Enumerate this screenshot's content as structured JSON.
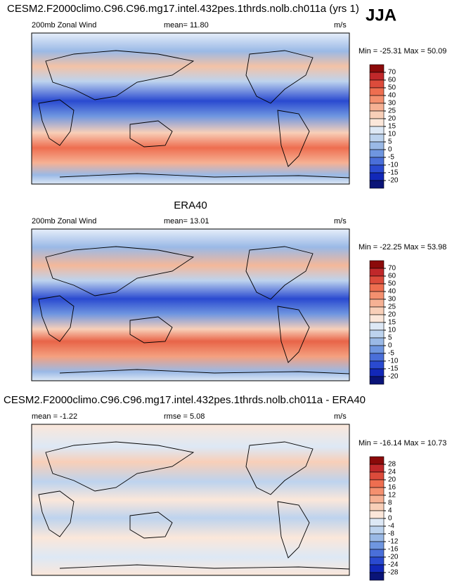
{
  "season": "JJA",
  "panels": [
    {
      "title": "CESM2.F2000climo.C96.C96.mg17.intel.432pes.1thrds.nolb.ch011a (yrs 1)",
      "left": "200mb Zonal Wind",
      "center": "mean=  11.80",
      "units": "m/s",
      "minmax": "Min = -25.31 Max =  50.09",
      "levels": [
        70,
        60,
        50,
        40,
        30,
        25,
        20,
        15,
        10,
        5,
        0,
        -5,
        -10,
        -15,
        -20
      ],
      "colors": [
        "#8b0a0a",
        "#c0282a",
        "#dc4b3b",
        "#ee6e50",
        "#f4906f",
        "#f6b194",
        "#f8cfb8",
        "#fbe7da",
        "#dde8f5",
        "#bdd3ee",
        "#9ab9e6",
        "#6f96e0",
        "#4a6fd9",
        "#2a4ad0",
        "#1228b8",
        "#0a1478"
      ]
    },
    {
      "title": "ERA40",
      "left": "200mb Zonal Wind",
      "center": "mean=  13.01",
      "units": "m/s",
      "minmax": "Min = -22.25 Max =  53.98",
      "levels": [
        70,
        60,
        50,
        40,
        30,
        25,
        20,
        15,
        10,
        5,
        0,
        -5,
        -10,
        -15,
        -20
      ],
      "colors": [
        "#8b0a0a",
        "#c0282a",
        "#dc4b3b",
        "#ee6e50",
        "#f4906f",
        "#f6b194",
        "#f8cfb8",
        "#fbe7da",
        "#dde8f5",
        "#bdd3ee",
        "#9ab9e6",
        "#6f96e0",
        "#4a6fd9",
        "#2a4ad0",
        "#1228b8",
        "#0a1478"
      ]
    },
    {
      "title": "CESM2.F2000climo.C96.C96.mg17.intel.432pes.1thrds.nolb.ch011a - ERA40",
      "left": "mean =  -1.22",
      "center": "rmse =  5.08",
      "units": "m/s",
      "minmax": "Min = -16.14 Max =  10.73",
      "levels": [
        28,
        24,
        20,
        16,
        12,
        8,
        4,
        0,
        -4,
        -8,
        -12,
        -16,
        -20,
        -24,
        -28
      ],
      "colors": [
        "#8b0a0a",
        "#c0282a",
        "#dc4b3b",
        "#ee6e50",
        "#f4906f",
        "#f6b194",
        "#f8cfb8",
        "#fbe7da",
        "#dde8f5",
        "#bdd3ee",
        "#9ab9e6",
        "#6f96e0",
        "#4a6fd9",
        "#2a4ad0",
        "#1228b8",
        "#0a1478"
      ]
    }
  ]
}
